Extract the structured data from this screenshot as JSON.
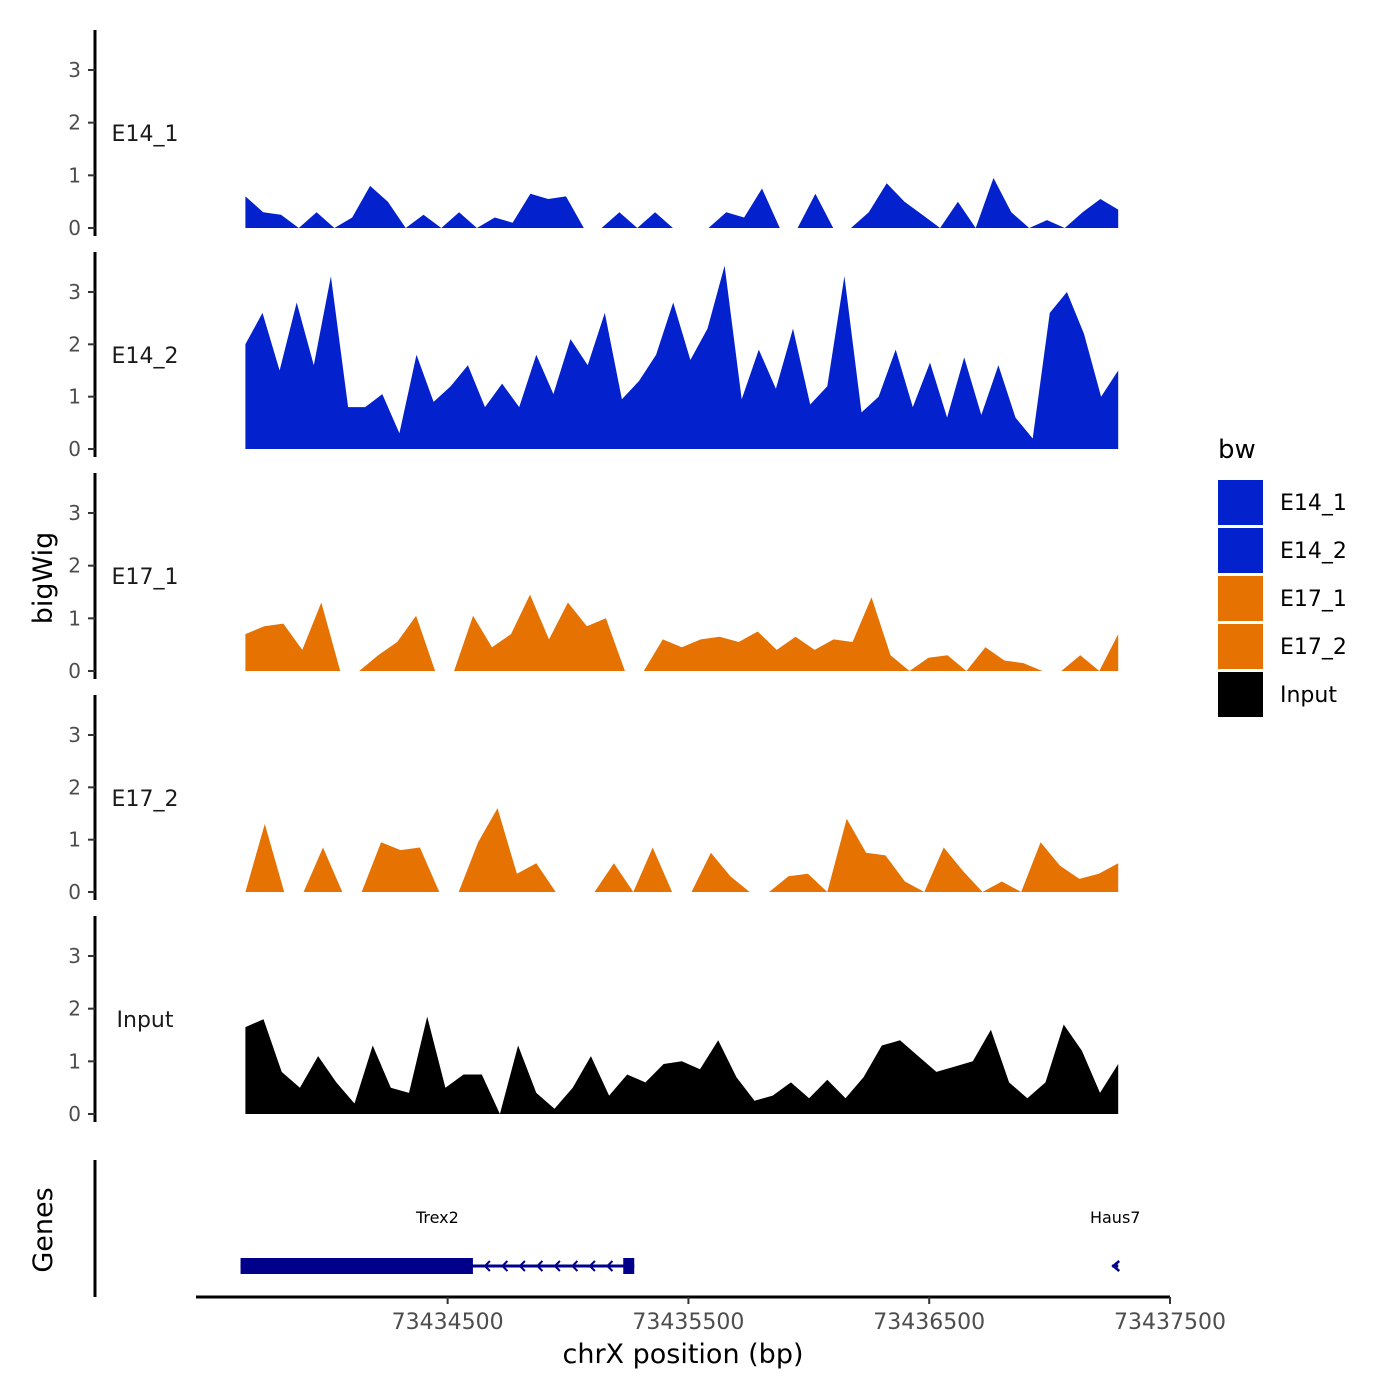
{
  "chart_data": {
    "type": "area",
    "x_axis": {
      "title": "chrX position (bp)",
      "range": [
        73433455,
        73437500
      ],
      "ticks": [
        73434500,
        73435500,
        73436500,
        73437500
      ],
      "tick_labels": [
        "73434500",
        "73435500",
        "73436500",
        "73437500"
      ]
    },
    "y_axis": {
      "title": "bigWig",
      "range": [
        0,
        3.7
      ],
      "ticks": [
        0,
        1,
        2,
        3
      ],
      "tick_labels": [
        "0",
        "1",
        "2",
        "3"
      ]
    },
    "x_extent": [
      73433660,
      73437285
    ],
    "tracks": [
      {
        "name": "E14_1",
        "color": "#0321CC",
        "values": [
          0.6,
          0.3,
          0.25,
          0,
          0.3,
          0,
          0.2,
          0.8,
          0.5,
          0,
          0.25,
          0,
          0.3,
          0,
          0.2,
          0.1,
          0.65,
          0.55,
          0.6,
          0,
          0,
          0.3,
          0,
          0.3,
          0,
          0,
          0,
          0.3,
          0.2,
          0.75,
          0,
          0,
          0.65,
          0,
          0,
          0.3,
          0.85,
          0.5,
          0.25,
          0,
          0.5,
          0,
          0.95,
          0.3,
          0,
          0.15,
          0,
          0.3,
          0.55,
          0.35
        ]
      },
      {
        "name": "E14_2",
        "color": "#0321CC",
        "values": [
          2.0,
          2.6,
          1.5,
          2.8,
          1.6,
          3.3,
          0.8,
          0.8,
          1.05,
          0.3,
          1.8,
          0.9,
          1.2,
          1.6,
          0.8,
          1.25,
          0.8,
          1.8,
          1.05,
          2.1,
          1.6,
          2.6,
          0.95,
          1.3,
          1.8,
          2.8,
          1.7,
          2.3,
          3.5,
          0.95,
          1.9,
          1.15,
          2.3,
          0.85,
          1.2,
          3.3,
          0.7,
          1.0,
          1.9,
          0.8,
          1.65,
          0.6,
          1.75,
          0.65,
          1.6,
          0.6,
          0.2,
          2.6,
          3.0,
          2.2,
          1.0,
          1.5
        ]
      },
      {
        "name": "E17_1",
        "color": "#E57201",
        "values": [
          0.7,
          0.85,
          0.9,
          0.4,
          1.3,
          0,
          0,
          0.3,
          0.55,
          1.05,
          0,
          0,
          1.05,
          0.45,
          0.7,
          1.45,
          0.6,
          1.3,
          0.85,
          1.0,
          0,
          0,
          0.6,
          0.45,
          0.6,
          0.65,
          0.55,
          0.75,
          0.4,
          0.65,
          0.4,
          0.6,
          0.55,
          1.4,
          0.3,
          0,
          0.25,
          0.3,
          0,
          0.45,
          0.2,
          0.15,
          0,
          0,
          0.3,
          0,
          0.7
        ]
      },
      {
        "name": "E17_2",
        "color": "#E57201",
        "values": [
          0,
          1.3,
          0,
          0,
          0.85,
          0,
          0,
          0.95,
          0.8,
          0.85,
          0,
          0,
          0.95,
          1.6,
          0.35,
          0.55,
          0,
          0,
          0,
          0.55,
          0,
          0.85,
          0,
          0,
          0.75,
          0.3,
          0,
          0,
          0.3,
          0.35,
          0,
          1.4,
          0.75,
          0.7,
          0.2,
          0,
          0.85,
          0.4,
          0,
          0.2,
          0,
          0.95,
          0.5,
          0.25,
          0.35,
          0.55
        ]
      },
      {
        "name": "Input",
        "color": "#000000",
        "values": [
          1.65,
          1.8,
          0.8,
          0.5,
          1.1,
          0.6,
          0.2,
          1.3,
          0.5,
          0.4,
          1.85,
          0.5,
          0.75,
          0.75,
          0,
          1.3,
          0.4,
          0.1,
          0.5,
          1.1,
          0.35,
          0.75,
          0.6,
          0.95,
          1.0,
          0.85,
          1.4,
          0.7,
          0.25,
          0.35,
          0.6,
          0.3,
          0.65,
          0.3,
          0.7,
          1.3,
          1.4,
          1.1,
          0.8,
          0.9,
          1.0,
          1.6,
          0.6,
          0.3,
          0.6,
          1.7,
          1.2,
          0.4,
          0.95
        ]
      }
    ],
    "genes_track": {
      "title": "Genes",
      "color": "#00008B",
      "genes": [
        {
          "name": "Trex2",
          "start": 73433640,
          "end": 73435275,
          "cds_end": 73434605,
          "strand": "-"
        },
        {
          "name": "Haus7",
          "start": 73437260,
          "end": 73437285,
          "strand": "-"
        }
      ]
    },
    "legend": {
      "title": "bw",
      "position": "right",
      "entries": [
        {
          "label": "E14_1",
          "color": "#0321CC"
        },
        {
          "label": "E14_2",
          "color": "#0321CC"
        },
        {
          "label": "E17_1",
          "color": "#E57201"
        },
        {
          "label": "E17_2",
          "color": "#E57201"
        },
        {
          "label": "Input",
          "color": "#000000"
        }
      ]
    }
  }
}
